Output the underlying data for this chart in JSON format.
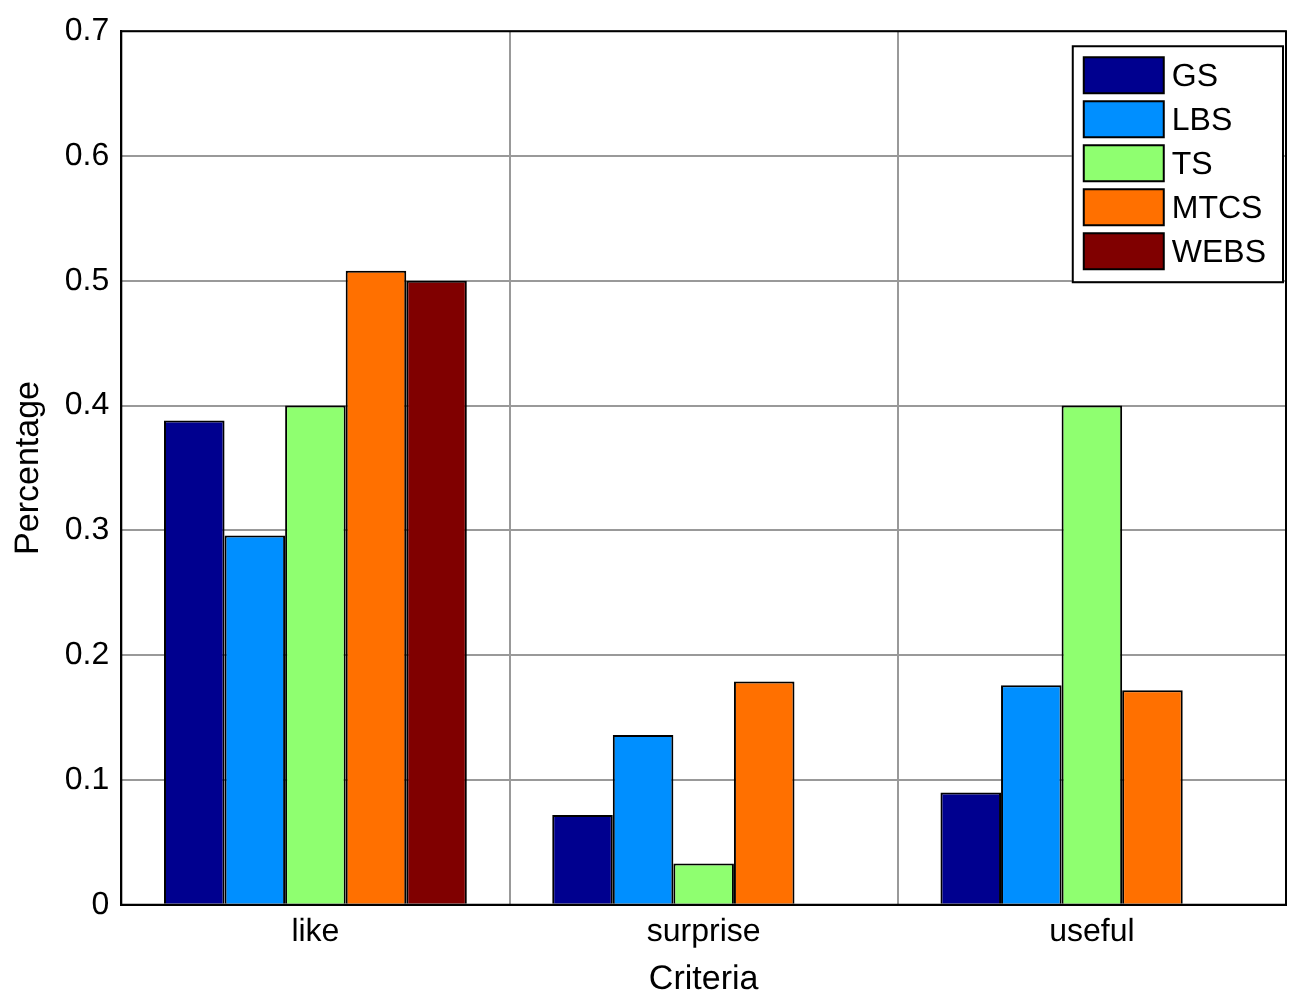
{
  "chart_data": {
    "type": "bar",
    "xlabel": "Criteria",
    "ylabel": "Percentage",
    "categories": [
      "like",
      "surprise",
      "useful"
    ],
    "series": [
      {
        "name": "GS",
        "color": "#00008f",
        "values": [
          0.388,
          0.072,
          0.09
        ]
      },
      {
        "name": "LBS",
        "color": "#008fff",
        "values": [
          0.296,
          0.136,
          0.176
        ]
      },
      {
        "name": "TS",
        "color": "#8fff70",
        "values": [
          0.4,
          0.033,
          0.4
        ]
      },
      {
        "name": "MTCS",
        "color": "#ff7000",
        "values": [
          0.508,
          0.179,
          0.172
        ]
      },
      {
        "name": "WEBS",
        "color": "#800000",
        "values": [
          0.5,
          0,
          0
        ]
      }
    ],
    "ylim": [
      0,
      0.7
    ],
    "yticks": [
      0,
      0.1,
      0.2,
      0.3,
      0.4,
      0.5,
      0.6,
      0.7
    ],
    "grid": true,
    "legend": "top right"
  }
}
